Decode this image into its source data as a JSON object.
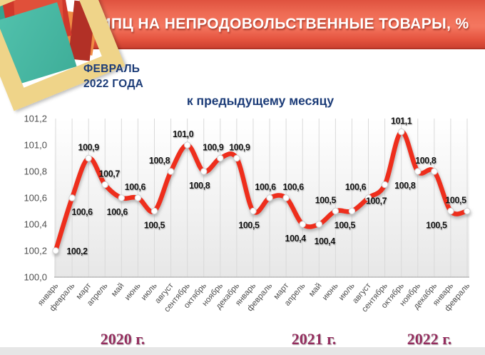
{
  "header": {
    "title": "ИПЦ НА НЕПРОДОВОЛЬСТВЕННЫЕ ТОВАРЫ, %"
  },
  "period": {
    "line1": "ФЕВРАЛЬ",
    "line2": "2022 ГОДА"
  },
  "chart_data": {
    "type": "line",
    "title": "к предыдущему месяцу",
    "unit": "%",
    "y_axis": {
      "min": 100.0,
      "max": 101.2,
      "step": 0.2,
      "tick_labels": [
        "100,0",
        "100,2",
        "100,4",
        "100,6",
        "100,8",
        "101,0",
        "101,2"
      ]
    },
    "x_categories": [
      "январь",
      "февраль",
      "март",
      "апрель",
      "май",
      "июнь",
      "июль",
      "август",
      "сентябрь",
      "октябрь",
      "ноябрь",
      "декабрь",
      "январь",
      "февраль",
      "март",
      "апрель",
      "май",
      "июнь",
      "июль",
      "август",
      "сентябрь",
      "октябрь",
      "ноябрь",
      "декабрь",
      "январь",
      "февраль"
    ],
    "series": [
      {
        "name": "ИПЦ на непродовольственные товары, к предыдущему месяцу",
        "values": [
          100.2,
          100.6,
          100.9,
          100.7,
          100.6,
          100.6,
          100.5,
          100.8,
          101.0,
          100.8,
          100.9,
          100.9,
          100.5,
          100.6,
          100.6,
          100.4,
          100.4,
          100.5,
          100.5,
          100.6,
          100.7,
          101.1,
          100.8,
          100.8,
          100.5,
          100.5
        ]
      }
    ],
    "point_labels": [
      "100,2",
      "100,6",
      "100,9",
      "100,7",
      "100,6",
      "100,6",
      "100,5",
      "100,8",
      "101,0",
      "100,8",
      "100,9",
      "100,9",
      "100,5",
      "100,6",
      "100,6",
      "100,4",
      "100,4",
      "100,5",
      "100,5",
      "100,6",
      "100,7",
      "101,1",
      "100,8",
      "100,8",
      "100,5",
      "100,5"
    ],
    "label_positions": [
      "right",
      "below",
      "above",
      "above",
      "below",
      "above",
      "below",
      "above",
      "above",
      "below",
      "above",
      "above",
      "below",
      "above",
      "above",
      "below",
      "below",
      "above",
      "below",
      "above",
      "below",
      "above",
      "below",
      "above",
      "below",
      "above"
    ],
    "year_labels": [
      {
        "text": "2020 г."
      },
      {
        "text": "2021 г."
      },
      {
        "text": "2022 г."
      }
    ],
    "grid": "vertical",
    "legend": "none"
  },
  "colors": {
    "line_red": "#ee2d1d",
    "banner_top": "#df523f",
    "banner_mid": "#f47760",
    "banner_bottom": "#cc4030",
    "navy_text": "#1c3c78",
    "year_text": "#942d5e",
    "tick_text": "#4f4f4f"
  }
}
